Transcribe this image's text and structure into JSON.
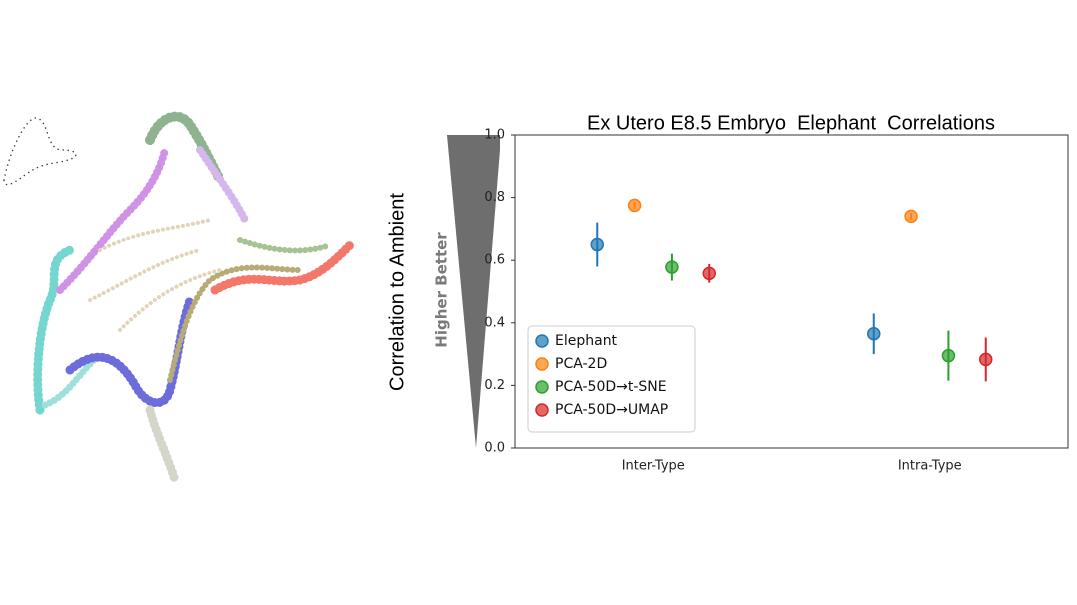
{
  "chart_data": {
    "type": "pointrange",
    "title": "Ex Utero E8.5 Embryo  Elephant  Correlations",
    "y_label": "Correlation to Ambient",
    "annotation": "Higher Better",
    "categories": [
      "Inter-Type",
      "Intra-Type"
    ],
    "series": [
      {
        "name": "Elephant",
        "color": "#1f77b4",
        "values": [
          0.65,
          0.365
        ],
        "errors": [
          0.07,
          0.065
        ]
      },
      {
        "name": "PCA-2D",
        "color": "#ff7f0e",
        "values": [
          0.775,
          0.74
        ],
        "errors": [
          0.01,
          0.01
        ]
      },
      {
        "name": "PCA-50D→t-SNE",
        "color": "#2ca02c",
        "values": [
          0.578,
          0.295
        ],
        "errors": [
          0.043,
          0.08
        ]
      },
      {
        "name": "PCA-50D→UMAP",
        "color": "#d62728",
        "values": [
          0.558,
          0.283
        ],
        "errors": [
          0.03,
          0.07
        ]
      }
    ],
    "ylim": [
      0,
      1
    ],
    "yticks": [
      {
        "value": 0,
        "label": "0.0"
      },
      0.2,
      0.4,
      0.6,
      0.8,
      {
        "value": 1,
        "label": "1.0"
      }
    ],
    "legend": "lower left"
  }
}
